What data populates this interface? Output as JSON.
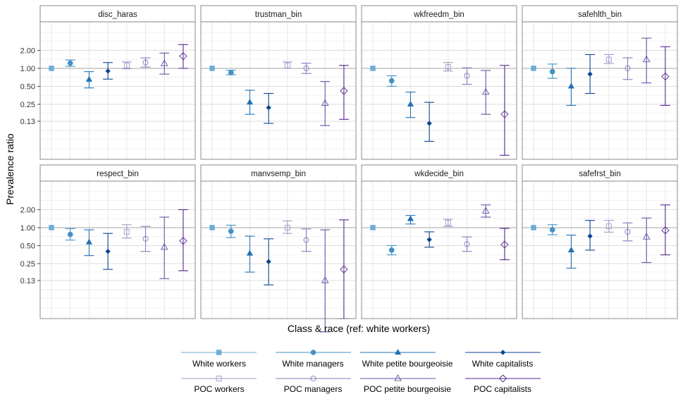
{
  "chart_data": {
    "type": "scatter",
    "subtype": "point-range faceted",
    "title": "",
    "xlabel": "Class & race (ref: white workers)",
    "ylabel": "Prevalence ratio",
    "y_scale": "log",
    "ylim": [
      0.03,
      6.0
    ],
    "y_ticks": [
      0.13,
      0.25,
      0.5,
      1.0,
      2.0
    ],
    "y_tick_labels": [
      "0.13",
      "0.25",
      "0.50",
      "1.00",
      "2.00"
    ],
    "reference_line": 1.0,
    "grid": true,
    "legend_position": "bottom",
    "series": [
      {
        "name": "White workers",
        "color": "#6baed6",
        "shape": "square-filled"
      },
      {
        "name": "White managers",
        "color": "#4292c6",
        "shape": "circle-filled"
      },
      {
        "name": "White petite bourgeoisie",
        "color": "#2171b5",
        "shape": "triangle-filled"
      },
      {
        "name": "White capitalists",
        "color": "#084594",
        "shape": "diamond-filled"
      },
      {
        "name": "POC workers",
        "color": "#9e9ac8",
        "shape": "square-open"
      },
      {
        "name": "POC managers",
        "color": "#807dba",
        "shape": "circle-open"
      },
      {
        "name": "POC petite bourgeoisie",
        "color": "#6a51a3",
        "shape": "triangle-open"
      },
      {
        "name": "POC capitalists",
        "color": "#54278f",
        "shape": "diamond-open"
      }
    ],
    "panels": [
      {
        "title": "disc_haras",
        "points": [
          {
            "est": 1.0,
            "lo": null,
            "hi": null
          },
          {
            "est": 1.22,
            "lo": 1.08,
            "hi": 1.38
          },
          {
            "est": 0.65,
            "lo": 0.47,
            "hi": 0.88
          },
          {
            "est": 0.9,
            "lo": 0.66,
            "hi": 1.25
          },
          {
            "est": 1.12,
            "lo": 0.98,
            "hi": 1.28
          },
          {
            "est": 1.25,
            "lo": 1.05,
            "hi": 1.5
          },
          {
            "est": 1.2,
            "lo": 0.8,
            "hi": 1.8
          },
          {
            "est": 1.6,
            "lo": 1.0,
            "hi": 2.5
          }
        ]
      },
      {
        "title": "trustman_bin",
        "points": [
          {
            "est": 1.0,
            "lo": null,
            "hi": null
          },
          {
            "est": 0.85,
            "lo": 0.78,
            "hi": 0.93
          },
          {
            "est": 0.27,
            "lo": 0.17,
            "hi": 0.43
          },
          {
            "est": 0.22,
            "lo": 0.12,
            "hi": 0.38
          },
          {
            "est": 1.12,
            "lo": 1.0,
            "hi": 1.28
          },
          {
            "est": 1.0,
            "lo": 0.82,
            "hi": 1.22
          },
          {
            "est": 0.26,
            "lo": 0.11,
            "hi": 0.6
          },
          {
            "est": 0.42,
            "lo": 0.14,
            "hi": 1.12
          }
        ]
      },
      {
        "title": "wkfreedm_bin",
        "points": [
          {
            "est": 1.0,
            "lo": null,
            "hi": null
          },
          {
            "est": 0.62,
            "lo": 0.5,
            "hi": 0.75
          },
          {
            "est": 0.25,
            "lo": 0.15,
            "hi": 0.4
          },
          {
            "est": 0.12,
            "lo": 0.06,
            "hi": 0.27
          },
          {
            "est": 1.05,
            "lo": 0.9,
            "hi": 1.25
          },
          {
            "est": 0.75,
            "lo": 0.54,
            "hi": 1.02
          },
          {
            "est": 0.4,
            "lo": 0.17,
            "hi": 0.92
          },
          {
            "est": 0.17,
            "lo": 0.035,
            "hi": 1.12
          }
        ]
      },
      {
        "title": "safehlth_bin",
        "points": [
          {
            "est": 1.0,
            "lo": null,
            "hi": null
          },
          {
            "est": 0.88,
            "lo": 0.68,
            "hi": 1.18
          },
          {
            "est": 0.5,
            "lo": 0.24,
            "hi": 1.0
          },
          {
            "est": 0.8,
            "lo": 0.38,
            "hi": 1.7
          },
          {
            "est": 1.4,
            "lo": 1.2,
            "hi": 1.7
          },
          {
            "est": 1.0,
            "lo": 0.65,
            "hi": 1.5
          },
          {
            "est": 1.4,
            "lo": 0.57,
            "hi": 3.2
          },
          {
            "est": 0.73,
            "lo": 0.24,
            "hi": 2.3
          }
        ]
      },
      {
        "title": "respect_bin",
        "points": [
          {
            "est": 1.0,
            "lo": null,
            "hi": null
          },
          {
            "est": 0.77,
            "lo": 0.62,
            "hi": 0.96
          },
          {
            "est": 0.57,
            "lo": 0.34,
            "hi": 0.92
          },
          {
            "est": 0.4,
            "lo": 0.2,
            "hi": 0.8
          },
          {
            "est": 0.85,
            "lo": 0.67,
            "hi": 1.12
          },
          {
            "est": 0.65,
            "lo": 0.4,
            "hi": 1.05
          },
          {
            "est": 0.47,
            "lo": 0.14,
            "hi": 1.5
          },
          {
            "est": 0.6,
            "lo": 0.19,
            "hi": 2.0
          }
        ]
      },
      {
        "title": "manvsemp_bin",
        "points": [
          {
            "est": 1.0,
            "lo": null,
            "hi": null
          },
          {
            "est": 0.87,
            "lo": 0.68,
            "hi": 1.1
          },
          {
            "est": 0.37,
            "lo": 0.18,
            "hi": 0.72
          },
          {
            "est": 0.27,
            "lo": 0.11,
            "hi": 0.65
          },
          {
            "est": 1.0,
            "lo": 0.8,
            "hi": 1.3
          },
          {
            "est": 0.62,
            "lo": 0.4,
            "hi": 0.95
          },
          {
            "est": 0.13,
            "lo": 0.018,
            "hi": 0.92
          },
          {
            "est": 0.2,
            "lo": 0.03,
            "hi": 1.35
          }
        ]
      },
      {
        "title": "wkdecide_bin",
        "points": [
          {
            "est": 1.0,
            "lo": null,
            "hi": null
          },
          {
            "est": 0.42,
            "lo": 0.35,
            "hi": 0.5
          },
          {
            "est": 1.4,
            "lo": 1.15,
            "hi": 1.6
          },
          {
            "est": 0.63,
            "lo": 0.47,
            "hi": 0.85
          },
          {
            "est": 1.2,
            "lo": 1.05,
            "hi": 1.38
          },
          {
            "est": 0.53,
            "lo": 0.4,
            "hi": 0.7
          },
          {
            "est": 1.9,
            "lo": 1.5,
            "hi": 2.4
          },
          {
            "est": 0.52,
            "lo": 0.29,
            "hi": 0.97
          }
        ]
      },
      {
        "title": "safefrst_bin",
        "points": [
          {
            "est": 1.0,
            "lo": null,
            "hi": null
          },
          {
            "est": 0.92,
            "lo": 0.76,
            "hi": 1.12
          },
          {
            "est": 0.42,
            "lo": 0.21,
            "hi": 0.75
          },
          {
            "est": 0.72,
            "lo": 0.42,
            "hi": 1.32
          },
          {
            "est": 1.05,
            "lo": 0.84,
            "hi": 1.32
          },
          {
            "est": 0.85,
            "lo": 0.6,
            "hi": 1.2
          },
          {
            "est": 0.7,
            "lo": 0.26,
            "hi": 1.45
          },
          {
            "est": 0.9,
            "lo": 0.35,
            "hi": 2.4
          }
        ]
      }
    ]
  }
}
